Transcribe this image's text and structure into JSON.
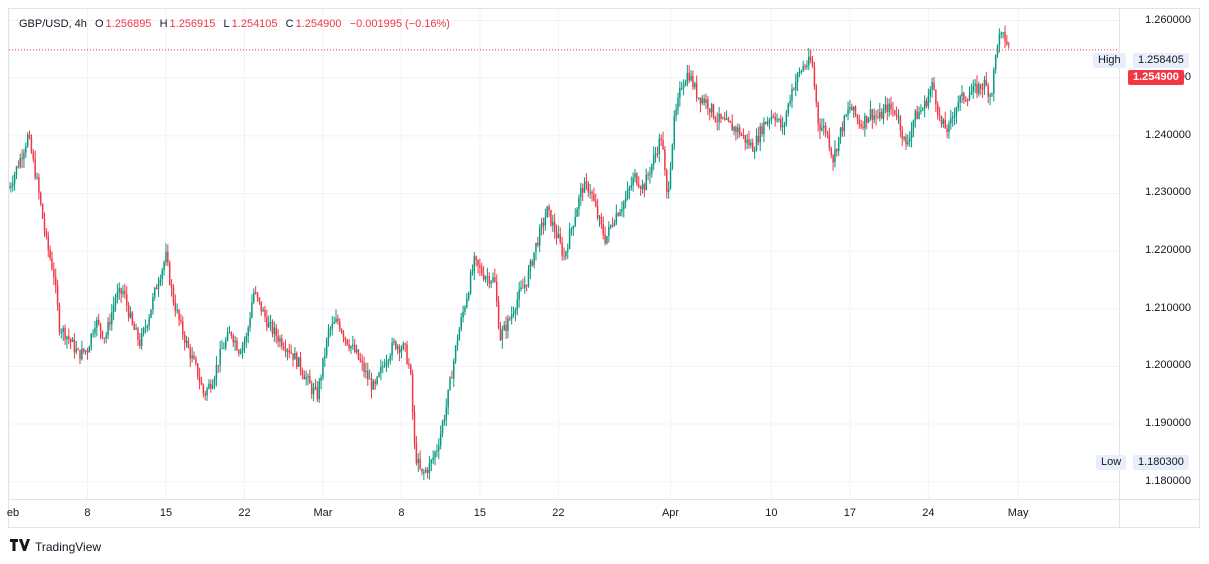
{
  "legend": {
    "symbol": "GBP/USD, 4h",
    "open_label": "O",
    "open": "1.256895",
    "high_label": "H",
    "high": "1.256915",
    "low_label": "L",
    "low": "1.254105",
    "close_label": "C",
    "close": "1.254900",
    "change": "−0.001995 (−0.16%)"
  },
  "brand": {
    "name": "TradingView",
    "logo_icon": "tradingview-logo-icon"
  },
  "colors": {
    "up": "#089981",
    "down": "#f23645",
    "grid": "#f0f3fa",
    "last": "#f23645"
  },
  "tags": {
    "high_label": "High",
    "high_value": "1.258405",
    "low_label": "Low",
    "low_value": "1.180300",
    "last_value": "1.254900"
  },
  "chart_data": {
    "type": "candlestick",
    "symbol": "GBP/USD",
    "interval": "4h",
    "ylim": [
      1.177,
      1.262
    ],
    "y_ticks": [
      "1.260000",
      "1.250000",
      "1.240000",
      "1.230000",
      "1.220000",
      "1.210000",
      "1.200000",
      "1.190000",
      "1.180000"
    ],
    "y_tick_values": [
      1.26,
      1.25,
      1.24,
      1.23,
      1.22,
      1.21,
      1.2,
      1.19,
      1.18
    ],
    "x_ticks": [
      "eb",
      "8",
      "15",
      "22",
      "Mar",
      "8",
      "15",
      "22",
      "Apr",
      "10",
      "17",
      "24",
      "May"
    ],
    "x_tick_days": [
      1,
      8,
      15,
      22,
      29,
      36,
      43,
      50,
      60,
      69,
      76,
      83,
      91
    ],
    "x_range_days": [
      1,
      100
    ],
    "high": 1.258405,
    "low": 1.1803,
    "last": 1.2549,
    "path_points": [
      [
        1,
        1.231
      ],
      [
        2,
        1.236
      ],
      [
        2.7,
        1.24
      ],
      [
        3.5,
        1.232
      ],
      [
        4.3,
        1.222
      ],
      [
        5,
        1.216
      ],
      [
        5.5,
        1.207
      ],
      [
        6.3,
        1.205
      ],
      [
        7.2,
        1.202
      ],
      [
        8,
        1.203
      ],
      [
        8.7,
        1.208
      ],
      [
        9.6,
        1.205
      ],
      [
        10.5,
        1.212
      ],
      [
        11.2,
        1.213
      ],
      [
        12,
        1.207
      ],
      [
        12.7,
        1.204
      ],
      [
        13.5,
        1.209
      ],
      [
        14.3,
        1.215
      ],
      [
        15,
        1.219
      ],
      [
        15.6,
        1.212
      ],
      [
        16.3,
        1.207
      ],
      [
        17,
        1.203
      ],
      [
        17.8,
        1.199
      ],
      [
        18.4,
        1.195
      ],
      [
        19.2,
        1.198
      ],
      [
        20,
        1.203
      ],
      [
        20.8,
        1.206
      ],
      [
        21.5,
        1.203
      ],
      [
        22.2,
        1.205
      ],
      [
        22.8,
        1.213
      ],
      [
        23.5,
        1.21
      ],
      [
        24.2,
        1.207
      ],
      [
        25,
        1.205
      ],
      [
        26,
        1.203
      ],
      [
        27,
        1.2
      ],
      [
        28,
        1.196
      ],
      [
        28.5,
        1.195
      ],
      [
        29.5,
        1.206
      ],
      [
        30.3,
        1.208
      ],
      [
        31,
        1.205
      ],
      [
        32,
        1.202
      ],
      [
        33,
        1.198
      ],
      [
        33.6,
        1.196
      ],
      [
        34.5,
        1.201
      ],
      [
        35.4,
        1.204
      ],
      [
        36.3,
        1.203
      ],
      [
        36.8,
        1.199
      ],
      [
        37.2,
        1.185
      ],
      [
        37.8,
        1.181
      ],
      [
        38.6,
        1.183
      ],
      [
        39.2,
        1.186
      ],
      [
        40,
        1.193
      ],
      [
        41,
        1.205
      ],
      [
        41.8,
        1.212
      ],
      [
        42.5,
        1.218
      ],
      [
        43.3,
        1.216
      ],
      [
        44.3,
        1.215
      ],
      [
        44.8,
        1.205
      ],
      [
        45.6,
        1.208
      ],
      [
        46.4,
        1.212
      ],
      [
        47.2,
        1.215
      ],
      [
        48,
        1.221
      ],
      [
        49,
        1.227
      ],
      [
        50,
        1.222
      ],
      [
        50.5,
        1.219
      ],
      [
        51.3,
        1.225
      ],
      [
        52.1,
        1.231
      ],
      [
        52.8,
        1.231
      ],
      [
        53.5,
        1.226
      ],
      [
        54.2,
        1.222
      ],
      [
        55,
        1.226
      ],
      [
        56,
        1.229
      ],
      [
        56.8,
        1.233
      ],
      [
        57.6,
        1.231
      ],
      [
        58.5,
        1.236
      ],
      [
        59.2,
        1.24
      ],
      [
        59.7,
        1.229
      ],
      [
        60.3,
        1.242
      ],
      [
        61,
        1.249
      ],
      [
        61.6,
        1.251
      ],
      [
        62.4,
        1.247
      ],
      [
        63.2,
        1.246
      ],
      [
        64.1,
        1.243
      ],
      [
        65,
        1.242
      ],
      [
        66,
        1.241
      ],
      [
        66.8,
        1.239
      ],
      [
        67.4,
        1.238
      ],
      [
        68.3,
        1.242
      ],
      [
        69.2,
        1.244
      ],
      [
        70,
        1.241
      ],
      [
        70.8,
        1.248
      ],
      [
        71.8,
        1.252
      ],
      [
        72.6,
        1.253
      ],
      [
        73.2,
        1.242
      ],
      [
        73.9,
        1.241
      ],
      [
        74.5,
        1.236
      ],
      [
        75.2,
        1.241
      ],
      [
        76,
        1.245
      ],
      [
        77,
        1.242
      ],
      [
        77.8,
        1.244
      ],
      [
        78.6,
        1.243
      ],
      [
        79.3,
        1.245
      ],
      [
        80.2,
        1.244
      ],
      [
        81,
        1.238
      ],
      [
        81.7,
        1.243
      ],
      [
        82.6,
        1.245
      ],
      [
        83.4,
        1.249
      ],
      [
        84.1,
        1.242
      ],
      [
        84.8,
        1.241
      ],
      [
        85.6,
        1.246
      ],
      [
        86.4,
        1.247
      ],
      [
        87.2,
        1.248
      ],
      [
        88,
        1.249
      ],
      [
        88.6,
        1.247
      ],
      [
        89.2,
        1.257
      ],
      [
        89.8,
        1.257
      ],
      [
        90.3,
        1.2549
      ]
    ]
  }
}
